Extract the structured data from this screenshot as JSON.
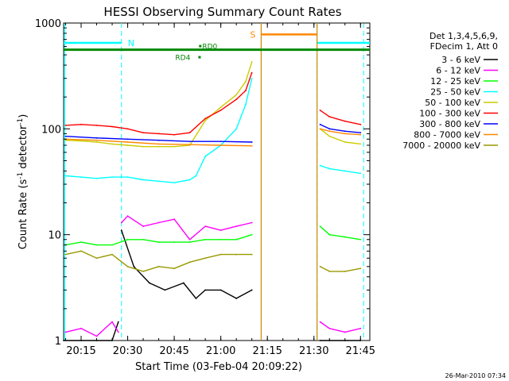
{
  "chart_data": {
    "type": "line",
    "title": "HESSI Observing Summary Count Rates",
    "xlabel": "Start Time (03-Feb-04 20:09:22)",
    "ylabel": "Count Rate (s⁻¹ detector⁻¹)",
    "ylabel_parts": {
      "main": "Count Rate (s",
      "sup1": "-1",
      "mid": " detector",
      "sup2": "-1",
      "end": ")"
    },
    "y_scale": "log",
    "ylim": [
      1,
      1000
    ],
    "xlim": [
      "20:09:22",
      "21:48:00"
    ],
    "x_ticks": [
      "20:15",
      "20:30",
      "20:45",
      "21:00",
      "21:15",
      "21:30",
      "21:45"
    ],
    "y_ticks": [
      "1",
      "10",
      "100",
      "1000"
    ],
    "legend_position": "right",
    "legend_header": [
      "Det 1,3,4,5,6,9,",
      "FDecim 1, Att 0"
    ],
    "series": [
      {
        "name": "3 - 6 keV",
        "color": "#000000",
        "segments": [
          {
            "x": [
              "20:09:22",
              "20:15",
              "20:20",
              "20:25",
              "20:27"
            ],
            "y": [
              1,
              1,
              1,
              1,
              1.5
            ]
          },
          {
            "x": [
              "20:28",
              "20:32",
              "20:37",
              "20:42",
              "20:48",
              "20:52",
              "20:55",
              "21:00",
              "21:05",
              "21:10"
            ],
            "y": [
              11,
              5,
              3.5,
              3,
              3.5,
              2.5,
              3,
              3,
              2.5,
              3
            ]
          },
          {
            "x": [
              "21:32",
              "21:35",
              "21:40",
              "21:45"
            ],
            "y": [
              1,
              1,
              1,
              1
            ]
          }
        ]
      },
      {
        "name": "6 - 12 keV",
        "color": "#ff00ff",
        "segments": [
          {
            "x": [
              "20:10",
              "20:15",
              "20:20",
              "20:25",
              "20:27"
            ],
            "y": [
              1.2,
              1.3,
              1.1,
              1.5,
              1.2
            ]
          },
          {
            "x": [
              "20:28",
              "20:30",
              "20:35",
              "20:40",
              "20:45",
              "20:50",
              "20:55",
              "21:00",
              "21:05",
              "21:10"
            ],
            "y": [
              13,
              15,
              12,
              13,
              14,
              9,
              12,
              11,
              12,
              13
            ]
          },
          {
            "x": [
              "21:32",
              "21:35",
              "21:40",
              "21:45"
            ],
            "y": [
              1.5,
              1.3,
              1.2,
              1.3
            ]
          }
        ]
      },
      {
        "name": "12 - 25 keV",
        "color": "#00ff00",
        "segments": [
          {
            "x": [
              "20:10",
              "20:15",
              "20:20",
              "20:25",
              "20:30",
              "20:35",
              "20:40",
              "20:45",
              "20:50",
              "20:55",
              "21:00",
              "21:05",
              "21:10"
            ],
            "y": [
              8,
              8.5,
              8,
              8,
              9,
              9,
              8.5,
              8.5,
              8.5,
              9,
              9,
              9,
              10
            ]
          },
          {
            "x": [
              "21:32",
              "21:35",
              "21:40",
              "21:45"
            ],
            "y": [
              12,
              10,
              9.5,
              9
            ]
          }
        ]
      },
      {
        "name": "25 - 50 keV",
        "color": "#00ffff",
        "segments": [
          {
            "x": [
              "20:10",
              "20:15",
              "20:20",
              "20:25",
              "20:30",
              "20:35",
              "20:40",
              "20:45",
              "20:50",
              "20:52",
              "20:55",
              "21:00",
              "21:05",
              "21:08",
              "21:10"
            ],
            "y": [
              36,
              35,
              34,
              35,
              35,
              33,
              32,
              31,
              33,
              36,
              55,
              70,
              100,
              170,
              300
            ]
          },
          {
            "x": [
              "21:32",
              "21:35",
              "21:40",
              "21:45"
            ],
            "y": [
              45,
              42,
              40,
              38
            ]
          }
        ]
      },
      {
        "name": "50 - 100 keV",
        "color": "#cccc00",
        "segments": [
          {
            "x": [
              "20:10",
              "20:15",
              "20:20",
              "20:25",
              "20:30",
              "20:35",
              "20:40",
              "20:45",
              "20:50",
              "20:55",
              "21:00",
              "21:05",
              "21:08",
              "21:10"
            ],
            "y": [
              78,
              77,
              75,
              72,
              70,
              68,
              68,
              68,
              70,
              120,
              160,
              210,
              280,
              430
            ]
          },
          {
            "x": [
              "21:32",
              "21:35",
              "21:40",
              "21:45"
            ],
            "y": [
              100,
              85,
              75,
              72
            ]
          }
        ]
      },
      {
        "name": "100 - 300 keV",
        "color": "#ff0000",
        "segments": [
          {
            "x": [
              "20:10",
              "20:15",
              "20:20",
              "20:25",
              "20:30",
              "20:35",
              "20:40",
              "20:45",
              "20:50",
              "20:55",
              "21:00",
              "21:05",
              "21:08",
              "21:10"
            ],
            "y": [
              108,
              110,
              108,
              105,
              100,
              92,
              90,
              88,
              92,
              125,
              150,
              190,
              230,
              340
            ]
          },
          {
            "x": [
              "21:32",
              "21:35",
              "21:40",
              "21:45"
            ],
            "y": [
              150,
              130,
              118,
              110
            ]
          }
        ]
      },
      {
        "name": "300 - 800 keV",
        "color": "#0000ff",
        "segments": [
          {
            "x": [
              "20:10",
              "20:20",
              "20:30",
              "20:40",
              "20:50",
              "21:00",
              "21:10"
            ],
            "y": [
              85,
              82,
              80,
              78,
              76,
              76,
              75
            ]
          },
          {
            "x": [
              "21:32",
              "21:35",
              "21:40",
              "21:45"
            ],
            "y": [
              110,
              100,
              95,
              92
            ]
          }
        ]
      },
      {
        "name": "800 - 7000 keV",
        "color": "#ff8800",
        "segments": [
          {
            "x": [
              "20:10",
              "20:20",
              "20:30",
              "20:40",
              "20:50",
              "21:00",
              "21:10"
            ],
            "y": [
              80,
              78,
              75,
              72,
              71,
              70,
              69
            ]
          },
          {
            "x": [
              "21:32",
              "21:35",
              "21:40",
              "21:45"
            ],
            "y": [
              100,
              95,
              90,
              88
            ]
          }
        ]
      },
      {
        "name": "7000 - 20000 keV",
        "color": "#999900",
        "segments": [
          {
            "x": [
              "20:10",
              "20:15",
              "20:20",
              "20:25",
              "20:30",
              "20:35",
              "20:40",
              "20:45",
              "20:50",
              "20:55",
              "21:00",
              "21:05",
              "21:10"
            ],
            "y": [
              6.5,
              7,
              6,
              6.5,
              5,
              4.5,
              5,
              4.8,
              5.5,
              6,
              6.5,
              6.5,
              6.5
            ]
          },
          {
            "x": [
              "21:32",
              "21:35",
              "21:40",
              "21:45"
            ],
            "y": [
              5,
              4.5,
              4.5,
              4.8
            ]
          }
        ]
      }
    ],
    "annotations": {
      "night": {
        "label": "N",
        "color": "#00ffff",
        "y": 650,
        "spans": [
          [
            "20:09:22",
            "20:28"
          ],
          [
            "21:31",
            "21:48"
          ]
        ],
        "dashed_lines": [
          "20:28",
          "21:31",
          "21:46"
        ]
      },
      "saa": {
        "label": "S",
        "color": "#ff8800",
        "y": 780,
        "span": [
          "21:13",
          "21:31"
        ],
        "vline_color": "#cc8800",
        "vlines": [
          "21:13",
          "21:31"
        ]
      },
      "attenuator": {
        "color": "#008800",
        "y": 560,
        "span": [
          "20:09:22",
          "21:48"
        ]
      },
      "rd0": {
        "label": "RD0",
        "color": "#008800",
        "x": "20:53"
      },
      "rd4": {
        "label": "RD4",
        "color": "#008800",
        "x": "20:52"
      }
    },
    "footer_date": "26-Mar-2010 07:34"
  }
}
